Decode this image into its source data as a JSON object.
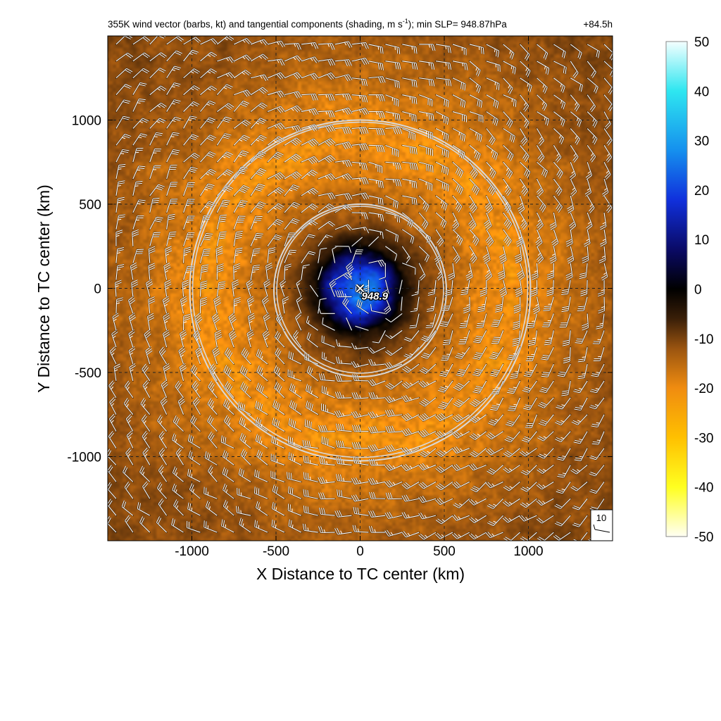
{
  "chart_data": {
    "type": "heatmap",
    "title": "355K wind vector (barbs, kt) and tangential components (shading, m s",
    "title_sup": "-1",
    "title_tail": "); min SLP= 948.87hPa",
    "time_label": "+84.5h",
    "xlabel": "X Distance to TC center (km)",
    "ylabel": "Y Distance to TC center (km)",
    "xlim": [
      -1500,
      1500
    ],
    "ylim": [
      -1500,
      1500
    ],
    "x_ticks": [
      -1000,
      -500,
      0,
      500,
      1000
    ],
    "y_ticks": [
      -1000,
      -500,
      0,
      500,
      1000
    ],
    "x_tick_labels": [
      "-1000",
      "-500",
      "0",
      "500",
      "1000"
    ],
    "y_tick_labels": [
      "-1000",
      "-500",
      "0",
      "500",
      "1000"
    ],
    "grid": true,
    "range_rings_km": [
      500,
      1000
    ],
    "center_marker": {
      "x": 0,
      "y": 0,
      "label": "948.9"
    },
    "colorbar": {
      "min": -50,
      "max": 50,
      "ticks": [
        50,
        40,
        30,
        20,
        10,
        0,
        -10,
        -20,
        -30,
        -40,
        -50
      ],
      "tick_labels": [
        "50",
        "40",
        "30",
        "20",
        "10",
        "0",
        "-10",
        "-20",
        "-30",
        "-40",
        "-50"
      ],
      "stops": [
        {
          "value": 50,
          "color": "#f4ffff"
        },
        {
          "value": 40,
          "color": "#2ee6f0"
        },
        {
          "value": 28,
          "color": "#1590ee"
        },
        {
          "value": 18,
          "color": "#1030dc"
        },
        {
          "value": 8,
          "color": "#0a0a66"
        },
        {
          "value": 0,
          "color": "#000000"
        },
        {
          "value": -6,
          "color": "#3a1f08"
        },
        {
          "value": -12,
          "color": "#9a5410"
        },
        {
          "value": -20,
          "color": "#f08c10"
        },
        {
          "value": -30,
          "color": "#ffc000"
        },
        {
          "value": -40,
          "color": "#ffff20"
        },
        {
          "value": -50,
          "color": "#fffff4"
        }
      ]
    },
    "field_profile": [
      {
        "r": 0,
        "v": 30
      },
      {
        "r": 120,
        "v": 20
      },
      {
        "r": 200,
        "v": 8
      },
      {
        "r": 260,
        "v": -2
      },
      {
        "r": 360,
        "v": -9
      },
      {
        "r": 500,
        "v": -14
      },
      {
        "r": 700,
        "v": -18
      },
      {
        "r": 900,
        "v": -21
      },
      {
        "r": 1100,
        "v": -18
      },
      {
        "r": 1300,
        "v": -15
      },
      {
        "r": 1600,
        "v": -12
      },
      {
        "r": 2200,
        "v": -10
      }
    ],
    "barb_spacing_km": 100,
    "reference_barb_label": "10"
  }
}
